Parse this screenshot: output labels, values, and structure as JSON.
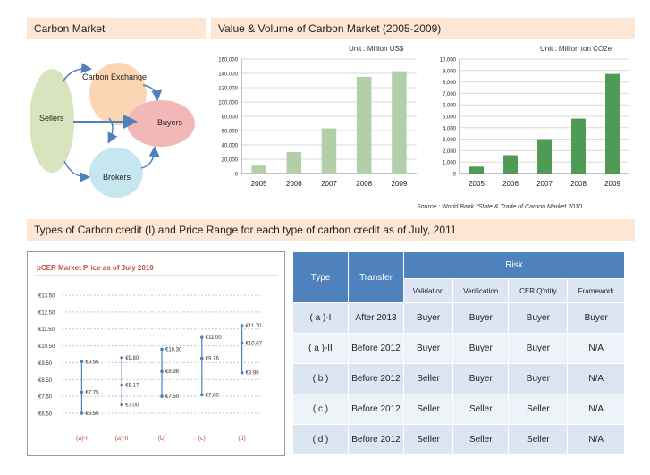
{
  "headers": {
    "carbon_market": "Carbon Market",
    "value_volume": "Value & Volume of Carbon Market (2005-2009)",
    "types": "Types of Carbon credit (I) and Price Range for each type of carbon credit as of July, 2011"
  },
  "diagram": {
    "sellers": "Sellers",
    "exchange": "Carbon Exchange",
    "buyers": "Buyers",
    "brokers": "Brokers",
    "colors": {
      "sellers": "#d7e4bd",
      "exchange": "#fcd5b5",
      "buyers": "#f2b8b8",
      "brokers": "#c6e6f0",
      "arrow": "#4f81bd"
    }
  },
  "units": {
    "value": "Unit : Million US$",
    "volume": "Unit : Million ton CO2e"
  },
  "source": "Source : World Bank \"State & Trade of Carbon Market 2010",
  "chart_data": [
    {
      "type": "bar",
      "categories": [
        "2005",
        "2006",
        "2007",
        "2008",
        "2009"
      ],
      "values": [
        11000,
        30000,
        63000,
        135000,
        143000
      ],
      "ylim": [
        0,
        160000
      ],
      "yticks": [
        "0",
        "20,000",
        "40,000",
        "60,000",
        "80,000",
        "100,000",
        "120,000",
        "140,000",
        "160,000"
      ],
      "color": "#b3cfaa",
      "grid": true
    },
    {
      "type": "bar",
      "categories": [
        "2005",
        "2006",
        "2007",
        "2008",
        "2009"
      ],
      "values": [
        600,
        1600,
        3000,
        4800,
        8700
      ],
      "ylim": [
        0,
        10000
      ],
      "yticks": [
        "0",
        "1,000",
        "2,000",
        "3,000",
        "4,000",
        "5,000",
        "6,000",
        "7,000",
        "8,000",
        "9,000",
        "10,000"
      ],
      "color": "#4f9a55",
      "grid": true
    },
    {
      "type": "range",
      "title": "pCER Market Price as of July 2010",
      "categories": [
        "(a)-I",
        "(a)-II",
        "(b)",
        "(c)",
        "(d)"
      ],
      "ylim": [
        6.5,
        13.5
      ],
      "yticks": [
        "€13.50",
        "€12.50",
        "€11.50",
        "€10.50",
        "€9.50",
        "€8.50",
        "€7.50",
        "€6.50"
      ],
      "series": [
        {
          "high": 9.56,
          "mid": 7.75,
          "low": 6.5,
          "labels": [
            "€9.56",
            "€7.75",
            "€6.50"
          ]
        },
        {
          "high": 9.8,
          "mid": 8.17,
          "low": 7.0,
          "labels": [
            "€9.80",
            "€8.17",
            "€7.00"
          ]
        },
        {
          "high": 10.3,
          "mid": 8.98,
          "low": 7.5,
          "labels": [
            "€10.30",
            "€8.98",
            "€7.50"
          ]
        },
        {
          "high": 11.0,
          "mid": 9.76,
          "low": 7.6,
          "labels": [
            "€11.00",
            "€9.76",
            "€7.60"
          ]
        },
        {
          "high": 11.7,
          "mid": 10.67,
          "low": 8.9,
          "labels": [
            "€11.70",
            "€10.67",
            "€8.90"
          ]
        }
      ],
      "color": "#4f81bd",
      "title_color": "#c0504d"
    },
    {
      "type": "table",
      "headers": [
        "Type",
        "Transfer",
        "Risk"
      ],
      "subheaders": [
        "Validation",
        "Verification",
        "CER Q'ntity",
        "Framework"
      ],
      "rows": [
        [
          "( a )-I",
          "After 2013",
          "Buyer",
          "Buyer",
          "Buyer",
          "Buyer"
        ],
        [
          "( a )-II",
          "Before 2012",
          "Buyer",
          "Buyer",
          "Buyer",
          "N/A"
        ],
        [
          "( b )",
          "Before 2012",
          "Seller",
          "Buyer",
          "Buyer",
          "N/A"
        ],
        [
          "( c )",
          "Before 2012",
          "Seller",
          "Seller",
          "Seller",
          "N/A"
        ],
        [
          "( d )",
          "Before 2012",
          "Seller",
          "Seller",
          "Seller",
          "N/A"
        ]
      ]
    }
  ]
}
